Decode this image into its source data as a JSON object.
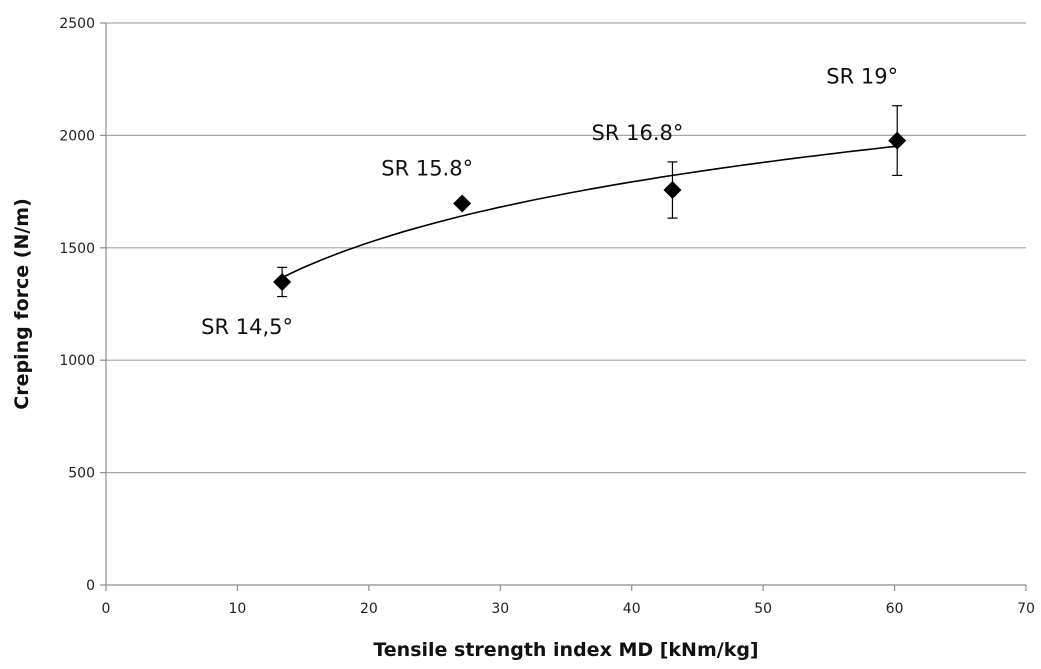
{
  "chart_data": {
    "type": "scatter",
    "title": "",
    "xlabel": "Tensile strength index MD [kNm/kg]",
    "ylabel": "Creping force (N/m)",
    "xlim": [
      0,
      70
    ],
    "ylim": [
      0,
      2500
    ],
    "x_ticks": [
      0,
      10,
      20,
      30,
      40,
      50,
      60,
      70
    ],
    "y_ticks": [
      0,
      500,
      1000,
      1500,
      2000,
      2500
    ],
    "x_tick_labels": [
      "0",
      "10",
      "20",
      "30",
      "40",
      "50",
      "60",
      "70"
    ],
    "y_tick_labels": [
      "0",
      "500",
      "1000",
      "1500",
      "2000",
      "2500"
    ],
    "grid": {
      "horizontal": true,
      "vertical": false
    },
    "legend": "none",
    "marker": "diamond",
    "series": [
      {
        "points": [
          {
            "x": 13.4,
            "y": 1348,
            "err": 65,
            "label": "SR 14,5°",
            "label_position": "below-left"
          },
          {
            "x": 27.1,
            "y": 1697,
            "err": 0,
            "label": "SR 15.8°",
            "label_position": "above-left"
          },
          {
            "x": 43.1,
            "y": 1757,
            "err": 125,
            "label": "SR 16.8°",
            "label_position": "above-left"
          },
          {
            "x": 60.2,
            "y": 1977,
            "err": 155,
            "label": "SR 19°",
            "label_position": "above-left"
          }
        ]
      }
    ],
    "trendline": {
      "type": "logarithmic",
      "a": 389,
      "b": 358,
      "x_range": [
        13.4,
        60.2
      ]
    },
    "colors": {
      "marker": "#000000",
      "trendline": "#000000",
      "gridline": "#a6a6a6",
      "axis": "#8c8c8c"
    }
  }
}
